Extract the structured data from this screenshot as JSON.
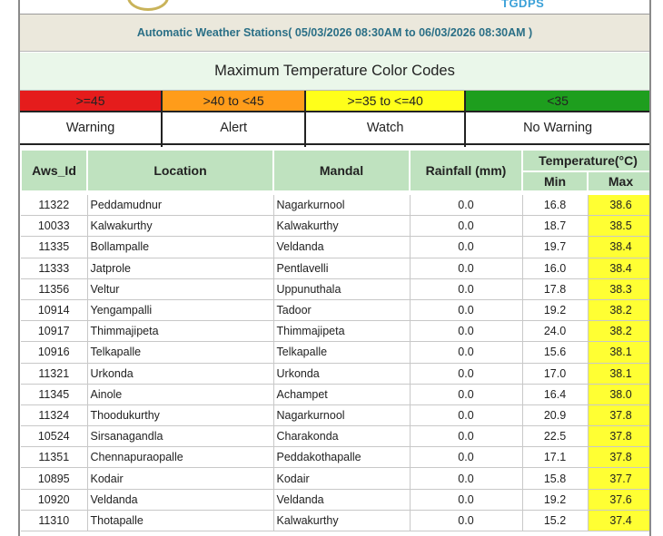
{
  "header": {
    "right_logo_text": "TGDPS",
    "banner": "Automatic Weather Stations( 05/03/2026 08:30AM to 06/03/2026 08:30AM )"
  },
  "color_codes": {
    "title": "Maximum Temperature Color Codes",
    "items": [
      {
        "range": ">=45",
        "label": "Warning",
        "color": "#e51c1c"
      },
      {
        "range": ">40 to <45",
        "label": "Alert",
        "color": "#ff9c1a"
      },
      {
        "range": ">=35 to <=40",
        "label": "Watch",
        "color": "#ffff1a"
      },
      {
        "range": "<35",
        "label": "No Warning",
        "color": "#1e9e1e"
      }
    ]
  },
  "table": {
    "headers": {
      "aws_id": "Aws_Id",
      "location": "Location",
      "mandal": "Mandal",
      "rainfall": "Rainfall (mm)",
      "temperature": "Temperature(°C)",
      "min": "Min",
      "max": "Max"
    },
    "rows": [
      {
        "id": "11322",
        "location": "Peddamudnur",
        "mandal": "Nagarkurnool",
        "rain": "0.0",
        "min": "16.8",
        "max": "38.6"
      },
      {
        "id": "10033",
        "location": "Kalwakurthy",
        "mandal": "Kalwakurthy",
        "rain": "0.0",
        "min": "18.7",
        "max": "38.5"
      },
      {
        "id": "11335",
        "location": "Bollampalle",
        "mandal": "Veldanda",
        "rain": "0.0",
        "min": "19.7",
        "max": "38.4"
      },
      {
        "id": "11333",
        "location": "Jatprole",
        "mandal": "Pentlavelli",
        "rain": "0.0",
        "min": "16.0",
        "max": "38.4"
      },
      {
        "id": "11356",
        "location": "Veltur",
        "mandal": "Uppunuthala",
        "rain": "0.0",
        "min": "17.8",
        "max": "38.3"
      },
      {
        "id": "10914",
        "location": "Yengampalli",
        "mandal": "Tadoor",
        "rain": "0.0",
        "min": "19.2",
        "max": "38.2"
      },
      {
        "id": "10917",
        "location": "Thimmajipeta",
        "mandal": "Thimmajipeta",
        "rain": "0.0",
        "min": "24.0",
        "max": "38.2"
      },
      {
        "id": "10916",
        "location": "Telkapalle",
        "mandal": "Telkapalle",
        "rain": "0.0",
        "min": "15.6",
        "max": "38.1"
      },
      {
        "id": "11321",
        "location": "Urkonda",
        "mandal": "Urkonda",
        "rain": "0.0",
        "min": "17.0",
        "max": "38.1"
      },
      {
        "id": "11345",
        "location": "Ainole",
        "mandal": "Achampet",
        "rain": "0.0",
        "min": "16.4",
        "max": "38.0"
      },
      {
        "id": "11324",
        "location": "Thoodukurthy",
        "mandal": "Nagarkurnool",
        "rain": "0.0",
        "min": "20.9",
        "max": "37.8"
      },
      {
        "id": "10524",
        "location": "Sirsanagandla",
        "mandal": "Charakonda",
        "rain": "0.0",
        "min": "22.5",
        "max": "37.8"
      },
      {
        "id": "11351",
        "location": "Chennapuraopalle",
        "mandal": "Peddakothapalle",
        "rain": "0.0",
        "min": "17.1",
        "max": "37.8"
      },
      {
        "id": "10895",
        "location": "Kodair",
        "mandal": "Kodair",
        "rain": "0.0",
        "min": "15.8",
        "max": "37.7"
      },
      {
        "id": "10920",
        "location": "Veldanda",
        "mandal": "Veldanda",
        "rain": "0.0",
        "min": "19.2",
        "max": "37.6"
      },
      {
        "id": "11310",
        "location": "Thotapalle",
        "mandal": "Kalwakurthy",
        "rain": "0.0",
        "min": "15.2",
        "max": "37.4"
      }
    ]
  }
}
